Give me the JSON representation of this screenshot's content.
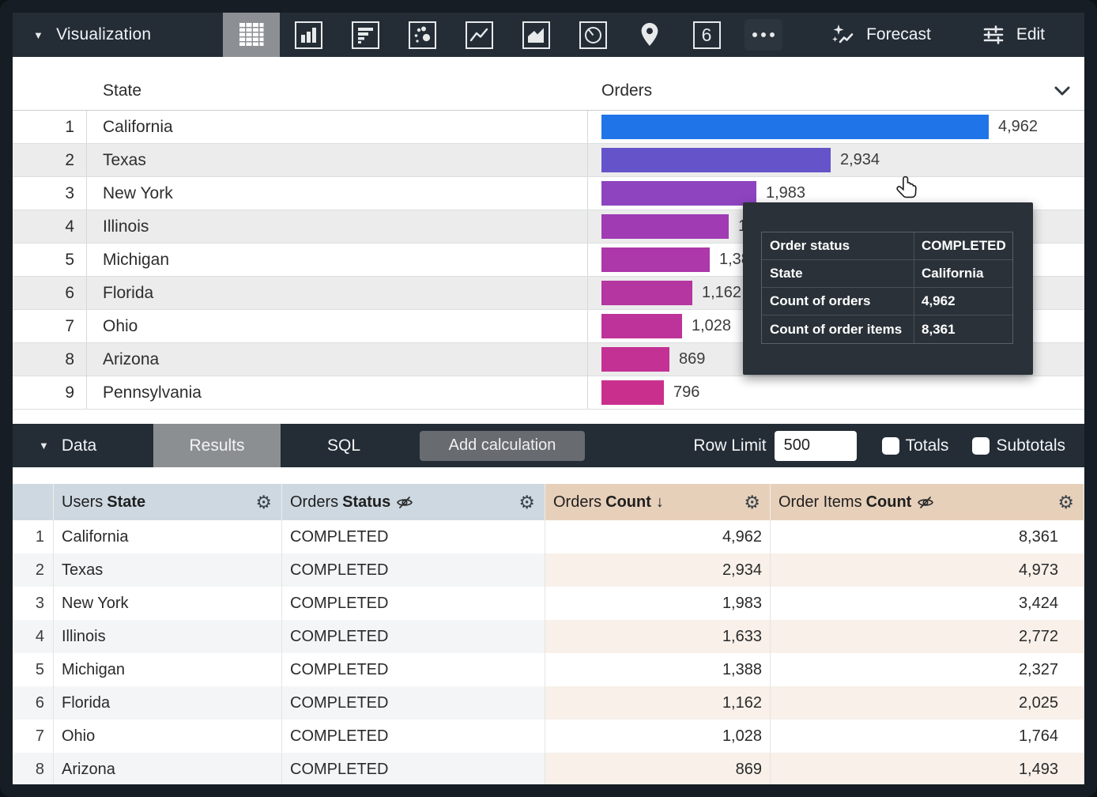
{
  "toolbar": {
    "visualization_label": "Visualization",
    "forecast_label": "Forecast",
    "edit_label": "Edit",
    "single_value_glyph": "6",
    "icon_names": [
      "table",
      "column-chart",
      "bar-chart",
      "scatter",
      "line-chart",
      "area-chart",
      "pie-chart",
      "map",
      "single-value",
      "more"
    ],
    "selected_icon": "table",
    "bg_color": "#242d36"
  },
  "viz": {
    "columns": {
      "state": "State",
      "orders": "Orders"
    },
    "max_value": 4962,
    "bar_colors": [
      "#1f74e8",
      "#6453c9",
      "#8d44be",
      "#a03bb4",
      "#ac38a9",
      "#b535a1",
      "#bd3399",
      "#c33194",
      "#c9308e"
    ],
    "rows": [
      {
        "rank": "1",
        "state": "California",
        "value": 4962,
        "label": "4,962"
      },
      {
        "rank": "2",
        "state": "Texas",
        "value": 2934,
        "label": "2,934"
      },
      {
        "rank": "3",
        "state": "New York",
        "value": 1983,
        "label": "1,983"
      },
      {
        "rank": "4",
        "state": "Illinois",
        "value": 1633,
        "label": "1,633"
      },
      {
        "rank": "5",
        "state": "Michigan",
        "value": 1388,
        "label": "1,388"
      },
      {
        "rank": "6",
        "state": "Florida",
        "value": 1162,
        "label": "1,162"
      },
      {
        "rank": "7",
        "state": "Ohio",
        "value": 1028,
        "label": "1,028"
      },
      {
        "rank": "8",
        "state": "Arizona",
        "value": 869,
        "label": "869"
      },
      {
        "rank": "9",
        "state": "Pennsylvania",
        "value": 796,
        "label": "796"
      }
    ]
  },
  "tooltip": {
    "rows": [
      {
        "label": "Order status",
        "value": "COMPLETED"
      },
      {
        "label": "State",
        "value": "California"
      },
      {
        "label": "Count of orders",
        "value": "4,962"
      },
      {
        "label": "Count of order items",
        "value": "8,361"
      }
    ]
  },
  "data_panel": {
    "data_label": "Data",
    "results_tab": "Results",
    "sql_tab": "SQL",
    "add_calculation_label": "Add calculation",
    "row_limit_label": "Row Limit",
    "row_limit_value": "500",
    "totals_label": "Totals",
    "subtotals_label": "Subtotals"
  },
  "data_table": {
    "headers": [
      {
        "prefix": "Users",
        "bold": "State",
        "hidden": false,
        "sort": "",
        "type": "dimension"
      },
      {
        "prefix": "Orders",
        "bold": "Status",
        "hidden": true,
        "sort": "",
        "type": "dimension"
      },
      {
        "prefix": "Orders",
        "bold": "Count",
        "hidden": false,
        "sort": "↓",
        "type": "measure"
      },
      {
        "prefix": "Order Items",
        "bold": "Count",
        "hidden": true,
        "sort": "",
        "type": "measure"
      }
    ],
    "gear_glyph": "⚙",
    "rows": [
      {
        "num": "1",
        "state": "California",
        "status": "COMPLETED",
        "orders_count": "4,962",
        "order_items_count": "8,361"
      },
      {
        "num": "2",
        "state": "Texas",
        "status": "COMPLETED",
        "orders_count": "2,934",
        "order_items_count": "4,973"
      },
      {
        "num": "3",
        "state": "New York",
        "status": "COMPLETED",
        "orders_count": "1,983",
        "order_items_count": "3,424"
      },
      {
        "num": "4",
        "state": "Illinois",
        "status": "COMPLETED",
        "orders_count": "1,633",
        "order_items_count": "2,772"
      },
      {
        "num": "5",
        "state": "Michigan",
        "status": "COMPLETED",
        "orders_count": "1,388",
        "order_items_count": "2,327"
      },
      {
        "num": "6",
        "state": "Florida",
        "status": "COMPLETED",
        "orders_count": "1,162",
        "order_items_count": "2,025"
      },
      {
        "num": "7",
        "state": "Ohio",
        "status": "COMPLETED",
        "orders_count": "1,028",
        "order_items_count": "1,764"
      },
      {
        "num": "8",
        "state": "Arizona",
        "status": "COMPLETED",
        "orders_count": "869",
        "order_items_count": "1,493"
      }
    ]
  },
  "chart_data": {
    "type": "bar",
    "orientation": "horizontal",
    "categories": [
      "California",
      "Texas",
      "New York",
      "Illinois",
      "Michigan",
      "Florida",
      "Ohio",
      "Arizona",
      "Pennsylvania"
    ],
    "values": [
      4962,
      2934,
      1983,
      1633,
      1388,
      1162,
      1028,
      869,
      796
    ],
    "series_name": "Orders",
    "title": "",
    "xlabel": "",
    "ylabel": "Orders",
    "xlim": [
      0,
      4962
    ]
  }
}
